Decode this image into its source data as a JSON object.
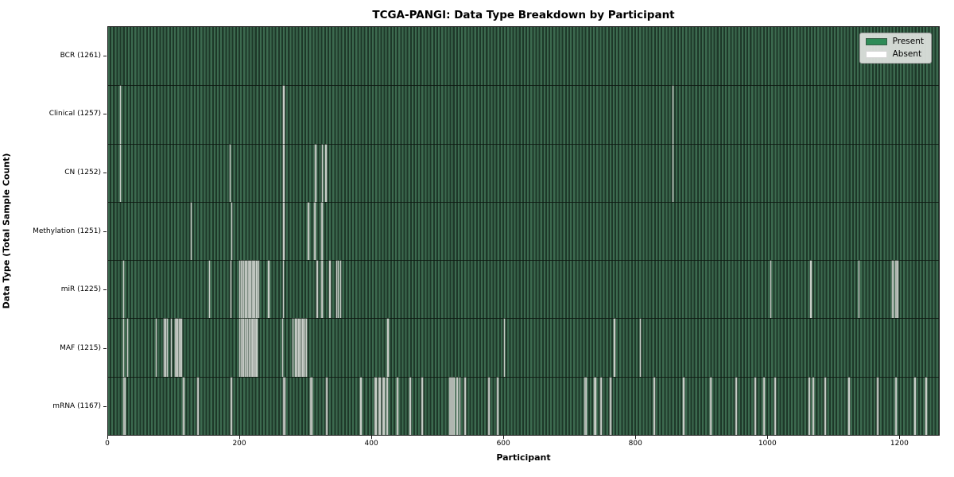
{
  "chart_data": {
    "type": "heatmap",
    "title": "TCGA-PANGI: Data Type Breakdown by Participant",
    "xlabel": "Participant",
    "ylabel": "Data Type (Total Sample Count)",
    "xlim": [
      0,
      1261
    ],
    "x_ticks": [
      0,
      200,
      400,
      600,
      800,
      1000,
      1200
    ],
    "total_participants": 1261,
    "grid": false,
    "legend_position": "upper right",
    "legend": [
      {
        "label": "Present",
        "color": "#2e8b57"
      },
      {
        "label": "Absent",
        "color": "#ffffff"
      }
    ],
    "rows": [
      {
        "name": "BCR",
        "label": "BCR (1261)",
        "present_count": 1261,
        "absent_count": 0,
        "absent_participants": []
      },
      {
        "name": "Clinical",
        "label": "Clinical (1257)",
        "present_count": 1257,
        "absent_count": 4,
        "absent_participants": [
          18,
          265,
          266,
          857
        ]
      },
      {
        "name": "CN",
        "label": "CN (1252)",
        "present_count": 1252,
        "absent_count": 9,
        "absent_participants": [
          18,
          185,
          265,
          266,
          314,
          315,
          324,
          330,
          857
        ]
      },
      {
        "name": "Methylation",
        "label": "Methylation (1251)",
        "present_count": 1251,
        "absent_count": 10,
        "absent_participants": [
          125,
          187,
          265,
          266,
          303,
          304,
          313,
          314,
          323,
          324
        ]
      },
      {
        "name": "miR",
        "label": "miR (1225)",
        "present_count": 1225,
        "absent_count": 36,
        "absent_participants": [
          23,
          153,
          186,
          199,
          201,
          203,
          205,
          208,
          210,
          212,
          214,
          216,
          218,
          220,
          222,
          225,
          228,
          243,
          265,
          316,
          317,
          323,
          324,
          336,
          346,
          349,
          352,
          1005,
          1066,
          1139,
          1190,
          1191,
          1195,
          1196,
          1197,
          1198
        ]
      },
      {
        "name": "MAF",
        "label": "MAF (1215)",
        "present_count": 1215,
        "absent_count": 46,
        "absent_participants": [
          23,
          29,
          72,
          84,
          85,
          86,
          87,
          89,
          95,
          101,
          102,
          103,
          105,
          107,
          109,
          111,
          199,
          201,
          203,
          204,
          205,
          207,
          209,
          211,
          213,
          215,
          217,
          219,
          221,
          222,
          223,
          225,
          264,
          280,
          283,
          284,
          286,
          289,
          292,
          295,
          298,
          300,
          424,
          601,
          768,
          807
        ]
      },
      {
        "name": "mRNA",
        "label": "mRNA (1167)",
        "present_count": 1167,
        "absent_count": 94,
        "absent_participants": [
          23,
          24,
          25,
          113,
          114,
          115,
          135,
          136,
          186,
          187,
          266,
          267,
          268,
          307,
          308,
          309,
          331,
          332,
          382,
          383,
          404,
          405,
          406,
          410,
          411,
          412,
          416,
          417,
          418,
          422,
          423,
          438,
          439,
          457,
          458,
          476,
          477,
          518,
          519,
          520,
          521,
          523,
          524,
          525,
          529,
          530,
          533,
          541,
          542,
          577,
          578,
          590,
          591,
          723,
          724,
          725,
          737,
          738,
          739,
          747,
          748,
          761,
          762,
          763,
          828,
          829,
          872,
          873,
          914,
          915,
          952,
          953,
          981,
          982,
          994,
          995,
          1011,
          1012,
          1063,
          1064,
          1069,
          1070,
          1087,
          1088,
          1123,
          1124,
          1167,
          1168,
          1195,
          1196,
          1223,
          1224,
          1240,
          1241
        ]
      }
    ],
    "colors": {
      "present": "#2e8b57",
      "absent": "#ffffff",
      "cell_stripe_light": "#3c6a4f",
      "cell_stripe_dark": "#1e3829",
      "absent_line": "#c7cdc7",
      "spine": "#1a1a1a",
      "legend_background": "#dbdfdb"
    }
  }
}
